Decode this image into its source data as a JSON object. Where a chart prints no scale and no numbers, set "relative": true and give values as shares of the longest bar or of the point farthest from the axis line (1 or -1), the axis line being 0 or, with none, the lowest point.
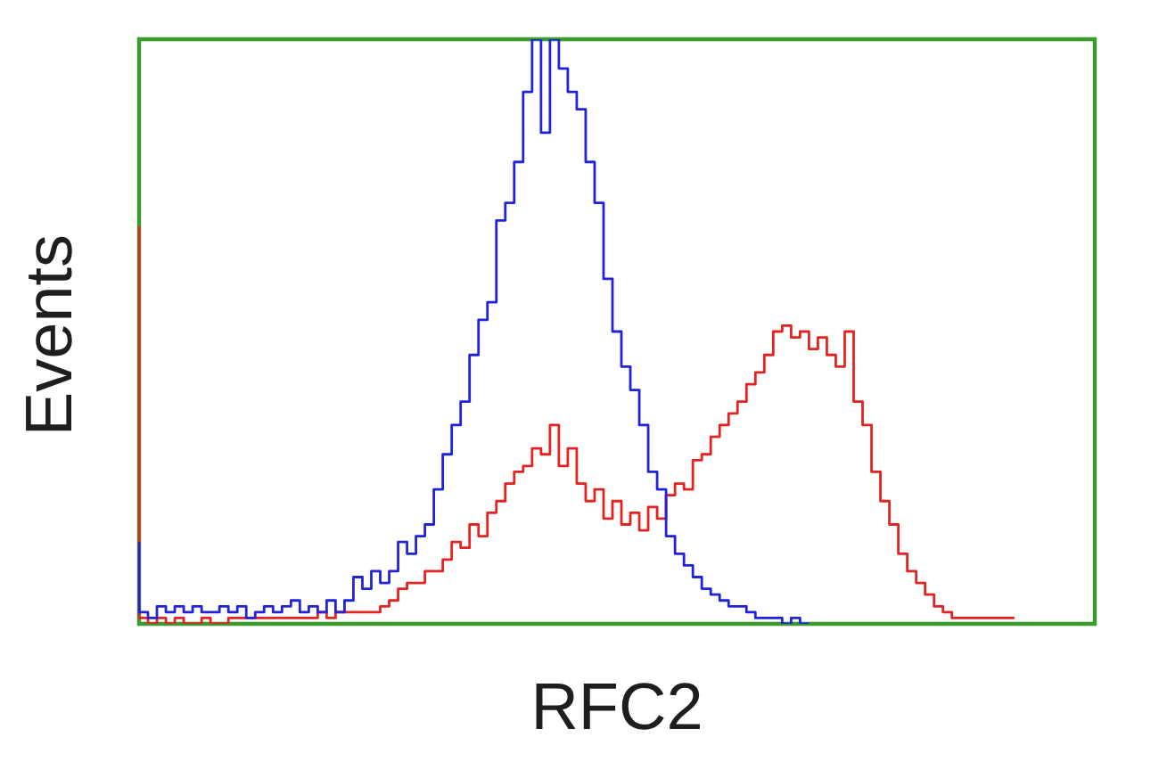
{
  "chart_data": {
    "type": "step",
    "xlabel": "RFC2",
    "ylabel": "Events",
    "relative": true,
    "tick_labels": false,
    "marker": "none",
    "categories": [
      null,
      null,
      null,
      null,
      null,
      null,
      null,
      null,
      null,
      null,
      null,
      null,
      null,
      null,
      null,
      null,
      null,
      null,
      null,
      null,
      null,
      null,
      null,
      null,
      null,
      null,
      null,
      null,
      null,
      null,
      null,
      null,
      null,
      null,
      null,
      null,
      null,
      null,
      null,
      null,
      null,
      null,
      null,
      null,
      null,
      null,
      null,
      null,
      null,
      null,
      null,
      null,
      null,
      null,
      null,
      null,
      null,
      null,
      null,
      null,
      null,
      null,
      null,
      null,
      null,
      null,
      null,
      null,
      null,
      null,
      null,
      null,
      null,
      null,
      null,
      null,
      null,
      null,
      null,
      null,
      null,
      null,
      null,
      null,
      null,
      null,
      null,
      null,
      null,
      null,
      null,
      null,
      null,
      null,
      null,
      null,
      null,
      null,
      null,
      null,
      null,
      null,
      null,
      null,
      null,
      null,
      null,
      null
    ],
    "series": [
      {
        "color": "#2222d8",
        "values": [
          0.14,
          0.02,
          0.01,
          0.03,
          0.02,
          0.03,
          0.02,
          0.03,
          0.02,
          0.02,
          0.03,
          0.02,
          0.03,
          0.01,
          0.02,
          0.03,
          0.02,
          0.03,
          0.04,
          0.02,
          0.03,
          0.02,
          0.04,
          0.02,
          0.04,
          0.08,
          0.06,
          0.09,
          0.07,
          0.09,
          0.14,
          0.12,
          0.15,
          0.17,
          0.23,
          0.29,
          0.34,
          0.38,
          0.46,
          0.52,
          0.55,
          0.69,
          0.72,
          0.79,
          0.91,
          1,
          0.84,
          1,
          0.95,
          0.91,
          0.88,
          0.79,
          0.72,
          0.59,
          0.5,
          0.44,
          0.4,
          0.34,
          0.26,
          0.23,
          0.15,
          0.12,
          0.1,
          0.08,
          0.06,
          0.05,
          0.04,
          0.03,
          0.03,
          0.02,
          0.01,
          0.01,
          0.01,
          0,
          0.01,
          0,
          null,
          null,
          null,
          null,
          null,
          null,
          null,
          null,
          null,
          null,
          null,
          null,
          null,
          null,
          null,
          null,
          null,
          null,
          null,
          null,
          null,
          null,
          null,
          null,
          null,
          null,
          null,
          null,
          null,
          null,
          null,
          null
        ]
      },
      {
        "color": "#e32222",
        "values": [
          0.68,
          0.01,
          0,
          0.01,
          0,
          0.01,
          0,
          0,
          0.01,
          0,
          0,
          0.01,
          0.01,
          0.01,
          0.01,
          0.01,
          0.01,
          0.01,
          0.01,
          0.01,
          0.01,
          0.02,
          0.01,
          0.02,
          0.02,
          0.02,
          0.02,
          0.02,
          0.03,
          0.04,
          0.06,
          0.07,
          0.07,
          0.09,
          0.09,
          0.11,
          0.14,
          0.13,
          0.17,
          0.15,
          0.19,
          0.21,
          0.24,
          0.26,
          0.27,
          0.3,
          0.29,
          0.34,
          0.27,
          0.3,
          0.24,
          0.21,
          0.23,
          0.18,
          0.21,
          0.17,
          0.19,
          0.16,
          0.2,
          0.18,
          0.22,
          0.24,
          0.23,
          0.28,
          0.29,
          0.32,
          0.34,
          0.36,
          0.38,
          0.41,
          0.43,
          0.46,
          0.5,
          0.51,
          0.49,
          0.5,
          0.47,
          0.49,
          0.46,
          0.44,
          0.5,
          0.38,
          0.34,
          0.26,
          0.21,
          0.17,
          0.12,
          0.09,
          0.07,
          0.05,
          0.03,
          0.02,
          0.01,
          0.01,
          0.01,
          0.01,
          0.01,
          0.01,
          0.01,
          null,
          null,
          null,
          null,
          null,
          null,
          null,
          null,
          null
        ]
      }
    ]
  }
}
